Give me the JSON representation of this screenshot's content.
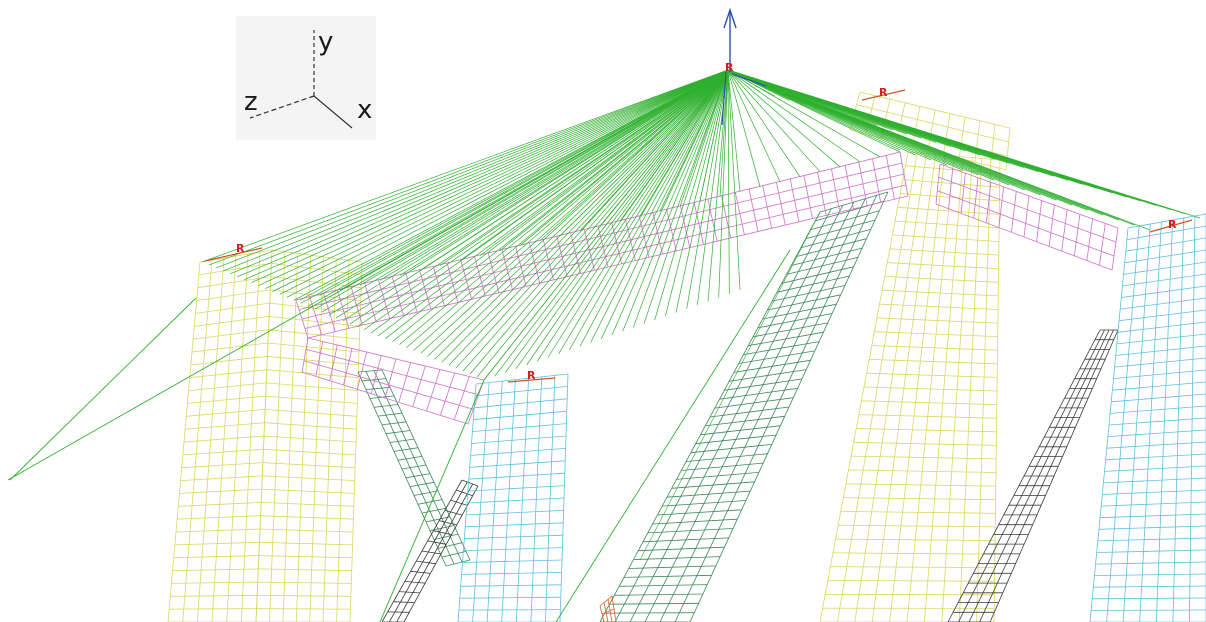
{
  "triad": {
    "x_label": "x",
    "y_label": "y",
    "z_label": "z"
  },
  "markers": {
    "rbe_label": "R"
  },
  "colors": {
    "background": "#ffffff",
    "spider_lines": "#2fb02f",
    "column_mesh": "#d8d860",
    "column_edge_mesh": "#5cc0e0",
    "beam_mesh": "#d070c8",
    "brace_mesh": "#3a8a5a",
    "dark_brace_mesh": "#3a3a3a",
    "load_arrow": "#3050b0",
    "rbe_marker": "#cc2222"
  },
  "icons": {
    "coordinate_triad": "xyz-triad-icon",
    "load_arrow": "up-arrow-icon"
  }
}
